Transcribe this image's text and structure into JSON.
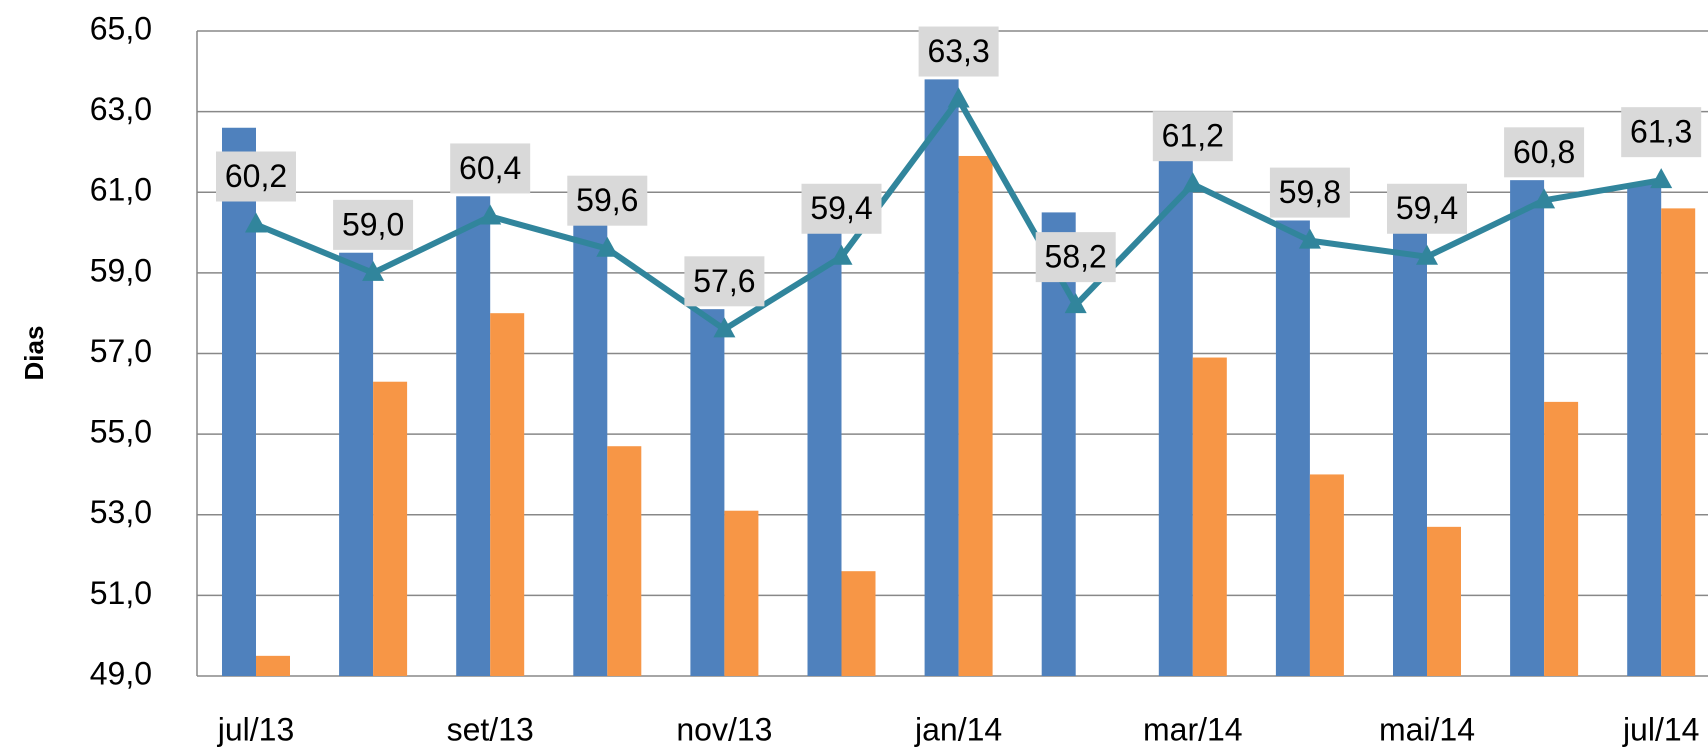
{
  "chart_data": {
    "type": "bar_line",
    "y_label": "Dias",
    "categories": [
      "jul/13",
      null,
      "set/13",
      null,
      "nov/13",
      null,
      "jan/14",
      null,
      "mar/14",
      null,
      "mai/14",
      null,
      "jul/14"
    ],
    "series": [
      {
        "type": "bar",
        "color": "#4f81bd",
        "values": [
          62.6,
          59.5,
          60.9,
          60.2,
          58.1,
          60.0,
          63.8,
          60.5,
          61.8,
          60.3,
          60.0,
          61.3,
          61.2
        ]
      },
      {
        "type": "bar",
        "color": "#f79646",
        "values": [
          49.5,
          56.3,
          58.0,
          54.7,
          53.1,
          51.6,
          61.9,
          null,
          56.9,
          54.0,
          52.7,
          55.8,
          60.6
        ]
      },
      {
        "type": "line",
        "color": "#31859c",
        "values": [
          60.2,
          59.0,
          60.4,
          59.6,
          57.6,
          59.4,
          63.3,
          58.2,
          61.2,
          59.8,
          59.4,
          60.8,
          61.3
        ],
        "value_labels": [
          "60,2",
          "59,0",
          "60,4",
          "59,6",
          "57,6",
          "59,4",
          "63,3",
          "58,2",
          "61,2",
          "59,8",
          "59,4",
          "60,8",
          "61,3"
        ]
      }
    ],
    "ylim": [
      49,
      65
    ],
    "yticks": [
      {
        "value": 49,
        "label": "49,0"
      },
      {
        "value": 51,
        "label": "51,0"
      },
      {
        "value": 53,
        "label": "53,0"
      },
      {
        "value": 55,
        "label": "55,0"
      },
      {
        "value": 57,
        "label": "57,0"
      },
      {
        "value": 59,
        "label": "59,0"
      },
      {
        "value": 61,
        "label": "61,0"
      },
      {
        "value": 63,
        "label": "63,0"
      },
      {
        "value": 65,
        "label": "65,0"
      }
    ],
    "grid": true
  }
}
